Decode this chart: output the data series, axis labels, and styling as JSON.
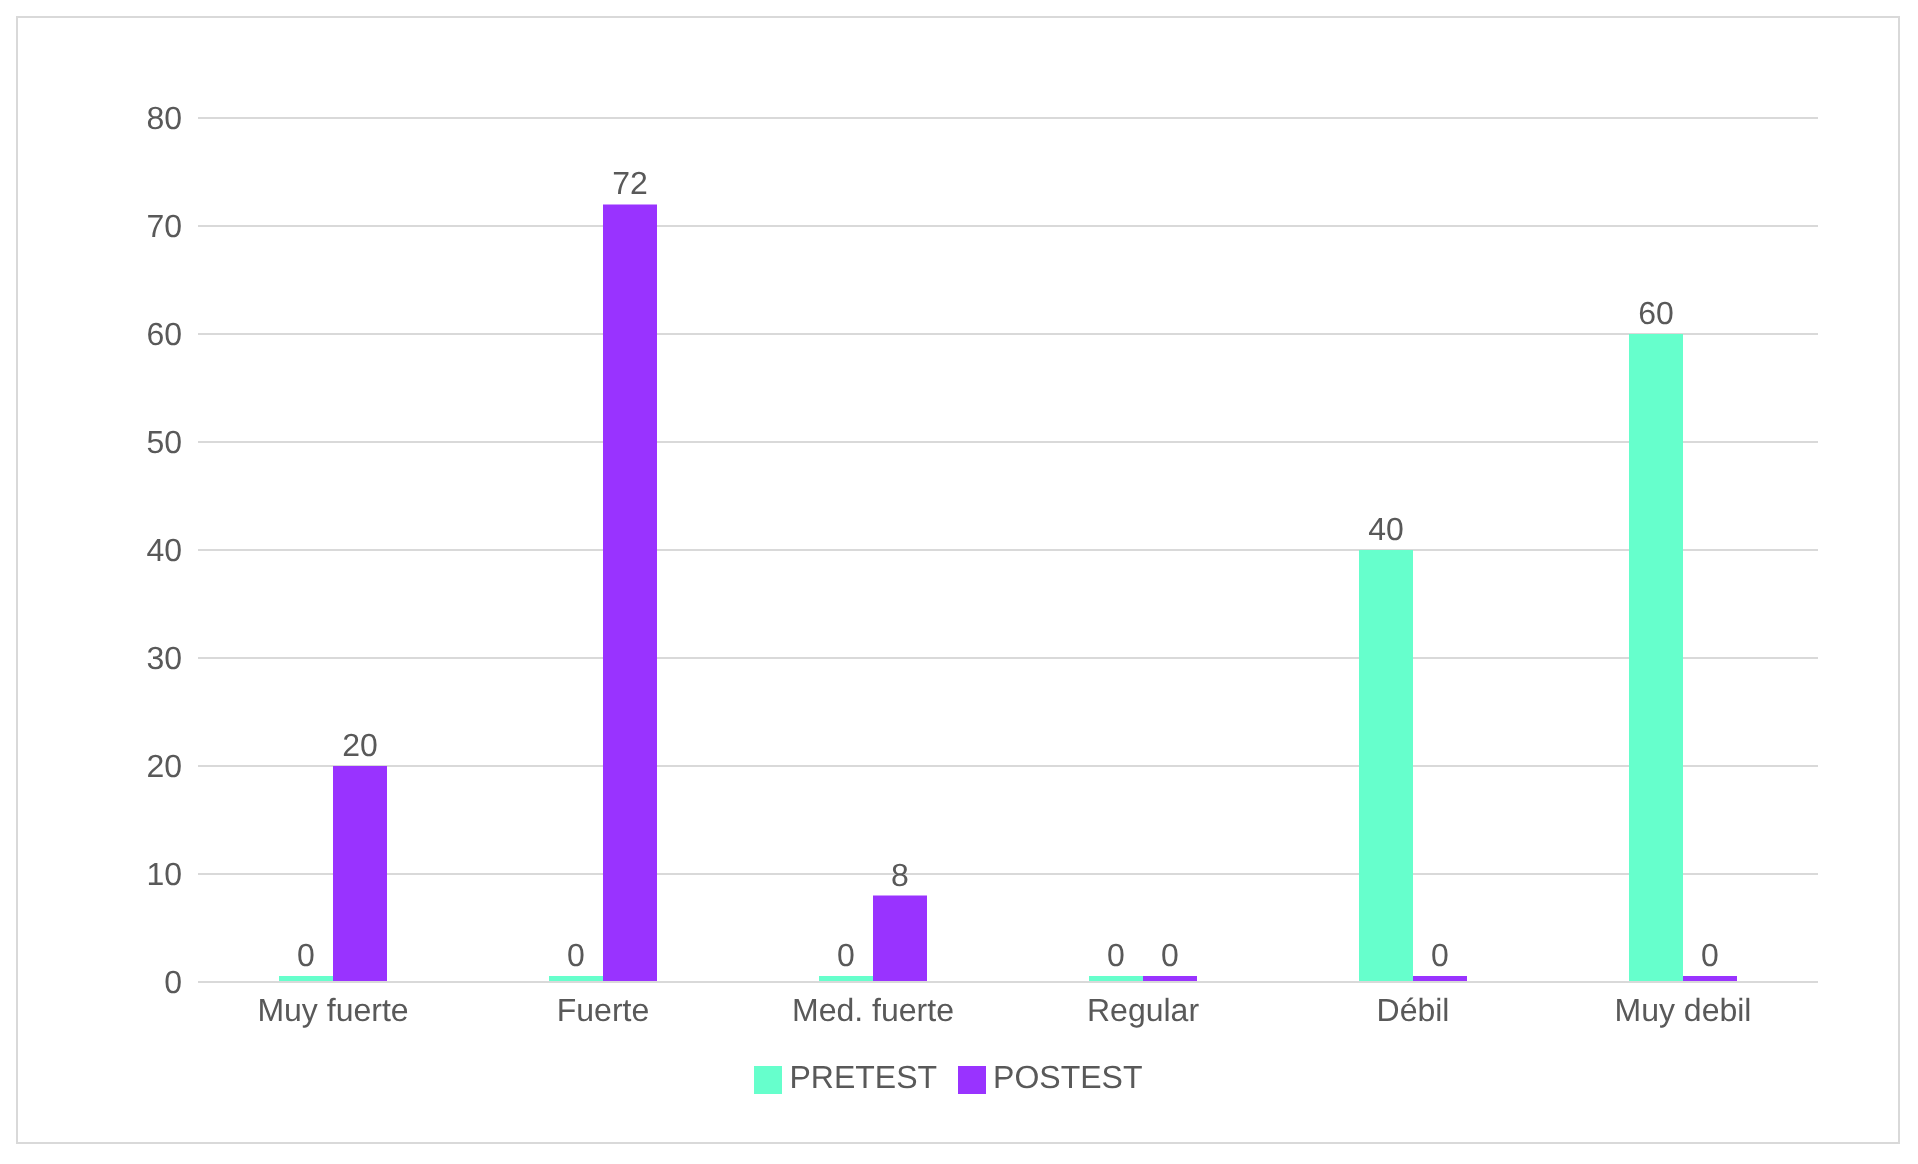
{
  "chart_data": {
    "type": "bar",
    "categories": [
      "Muy fuerte",
      "Fuerte",
      "Med. fuerte",
      "Regular",
      "Débil",
      "Muy debil"
    ],
    "series": [
      {
        "name": "PRETEST",
        "color": "#66ffcc",
        "values": [
          0,
          0,
          0,
          0,
          40,
          60
        ]
      },
      {
        "name": "POSTEST",
        "color": "#9933ff",
        "values": [
          20,
          72,
          8,
          0,
          0,
          0
        ]
      }
    ],
    "ylim": [
      0,
      80
    ],
    "yticks": [
      0,
      10,
      20,
      30,
      40,
      50,
      60,
      70,
      80
    ],
    "grid": "y",
    "legend": "bottom",
    "data_labels": true
  }
}
